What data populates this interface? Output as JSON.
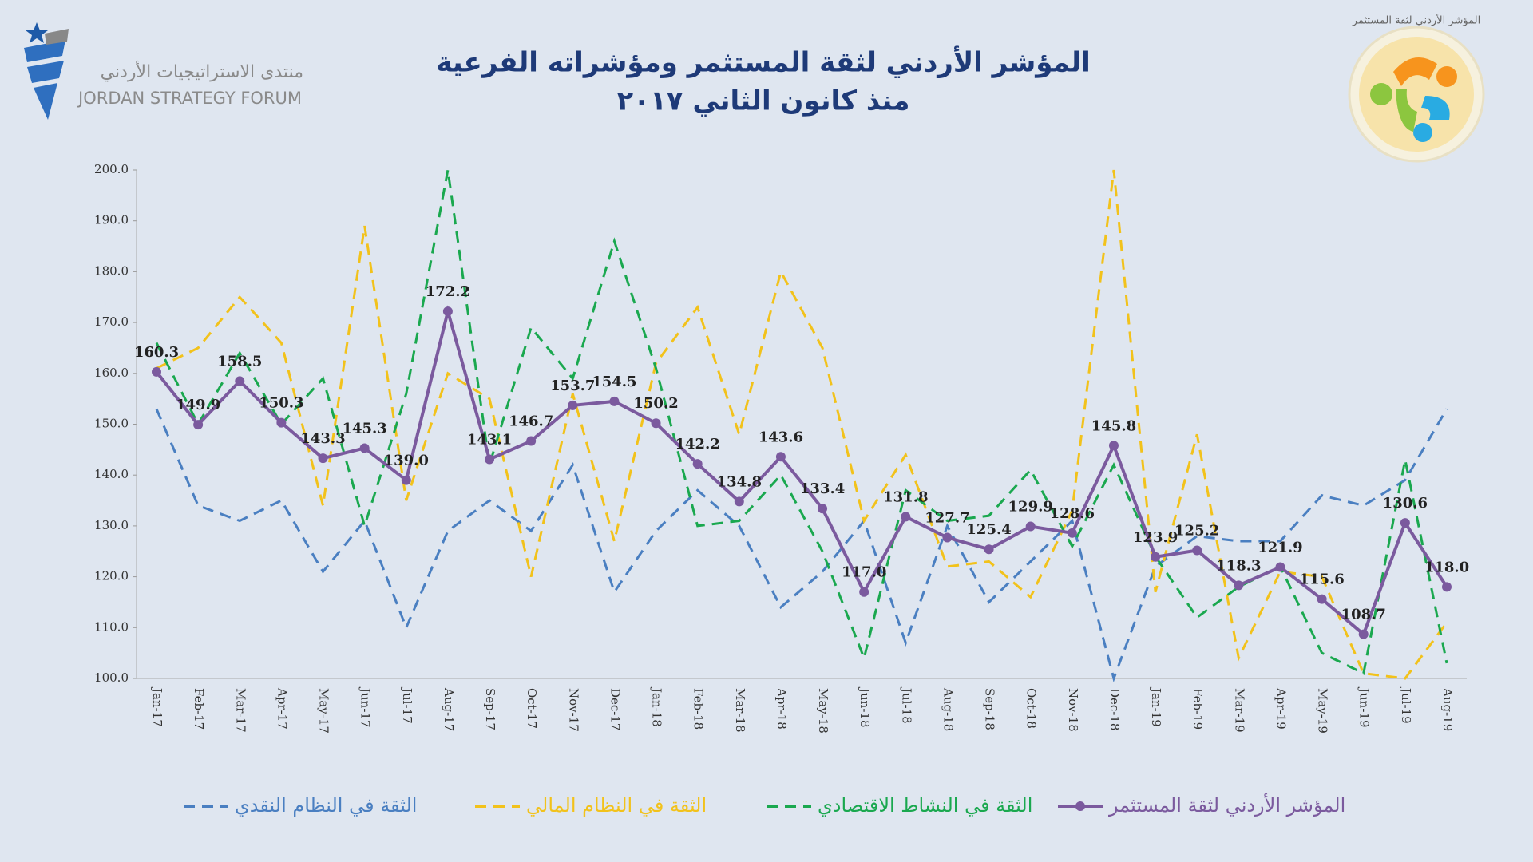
{
  "header": {
    "logo_text_ar": "منتدى الاستراتيجيات الأردني",
    "logo_text_en": "JORDAN STRATEGY FORUM",
    "badge_text": "المؤشر الأردني لثقة المستثمر"
  },
  "chart_data": {
    "type": "line",
    "title": "المؤشر الأردني لثقة المستثمر ومؤشراته الفرعية",
    "subtitle": "منذ كانون الثاني ٢٠١٧",
    "categories": [
      "Jan-17",
      "Feb-17",
      "Mar-17",
      "Apr-17",
      "May-17",
      "Jun-17",
      "Jul-17",
      "Aug-17",
      "Sep-17",
      "Oct-17",
      "Nov-17",
      "Dec-17",
      "Jan-18",
      "Feb-18",
      "Mar-18",
      "Apr-18",
      "May-18",
      "Jun-18",
      "Jul-18",
      "Aug-18",
      "Sep-18",
      "Oct-18",
      "Nov-18",
      "Dec-18",
      "Jan-19",
      "Feb-19",
      "Mar-19",
      "Apr-19",
      "May-19",
      "Jun-19",
      "Jul-19",
      "Aug-19"
    ],
    "ylim": [
      100,
      200
    ],
    "yticks": [
      {
        "value": 100,
        "label": "100.0"
      },
      {
        "value": 110,
        "label": "110.0"
      },
      {
        "value": 120,
        "label": "120.0"
      },
      {
        "value": 130,
        "label": "130.0"
      },
      {
        "value": 140,
        "label": "140.0"
      },
      {
        "value": 150,
        "label": "150.0"
      },
      {
        "value": 160,
        "label": "160.0"
      },
      {
        "value": 170,
        "label": "170.0"
      },
      {
        "value": 180,
        "label": "180.0"
      },
      {
        "value": 190,
        "label": "190.0"
      },
      {
        "value": 200,
        "label": "200.0"
      }
    ],
    "legend": "bottom",
    "series": [
      {
        "name": "الثقة في النظام النقدي",
        "color": "#4a7fc1",
        "dashed": true,
        "values": [
          153,
          134,
          131,
          135,
          121,
          131,
          110,
          129,
          135,
          129,
          142,
          117,
          129,
          137,
          130,
          114,
          121,
          131,
          107,
          130,
          115,
          123,
          131,
          100,
          122,
          128,
          127,
          127,
          136,
          134,
          139,
          153
        ]
      },
      {
        "name": "الثقة في النظام المالي",
        "color": "#f2c21b",
        "dashed": true,
        "values": [
          161,
          165,
          175,
          166,
          134,
          189,
          135,
          160,
          155,
          120,
          156,
          127,
          162,
          173,
          148,
          180,
          165,
          131,
          144,
          122,
          123,
          116,
          133,
          200,
          117,
          148,
          104,
          121,
          120,
          101,
          100,
          111
        ]
      },
      {
        "name": "الثقة في النشاط الاقتصادي",
        "color": "#1aa84f",
        "dashed": true,
        "values": [
          166,
          150,
          164,
          150,
          159,
          130,
          156,
          200,
          142,
          169,
          159,
          186,
          161,
          130,
          131,
          140,
          125,
          104,
          137,
          131,
          132,
          141,
          126,
          142,
          124,
          112,
          118,
          122,
          105,
          101,
          143,
          103
        ]
      },
      {
        "name": "المؤشر الأردني لثقة المستثمر",
        "color": "#7b5a9e",
        "dashed": false,
        "markers": true,
        "values": [
          160.3,
          149.9,
          158.5,
          150.3,
          143.3,
          145.3,
          139.0,
          172.2,
          143.1,
          146.7,
          153.7,
          154.5,
          150.2,
          142.2,
          134.8,
          143.6,
          133.4,
          117.0,
          131.8,
          127.7,
          125.4,
          129.9,
          128.6,
          145.8,
          123.9,
          125.2,
          118.3,
          121.9,
          115.6,
          108.7,
          130.6,
          118.0
        ],
        "value_labels": [
          "160.3",
          "149.9",
          "158.5",
          "150.3",
          "143.3",
          "145.3",
          "139.0",
          "172.2",
          "143.1",
          "146.7",
          "153.7",
          "154.5",
          "150.2",
          "142.2",
          "134.8",
          "143.6",
          "133.4",
          "117.0",
          "131.8",
          "127.7",
          "125.4",
          "129.9",
          "128.6",
          "145.8",
          "123.9",
          "125.2",
          "118.3",
          "121.9",
          "115.6",
          "108.7",
          "130.6",
          "118.0"
        ]
      }
    ]
  }
}
